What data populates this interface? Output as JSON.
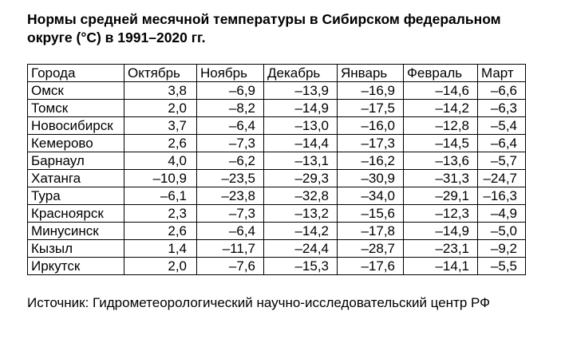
{
  "title": "Нормы средней месячной температуры в Сибирском федеральном округе (°C) в 1991–2020 гг.",
  "table": {
    "headers": [
      "Города",
      "Октябрь",
      "Ноябрь",
      "Декабрь",
      "Январь",
      "Февраль",
      "Март"
    ],
    "rows": [
      [
        "Омск",
        "3,8",
        "–6,9",
        "–13,9",
        "–16,9",
        "–14,6",
        "–6,6"
      ],
      [
        "Томск",
        "2,0",
        "–8,2",
        "–14,9",
        "–17,5",
        "–14,2",
        "–6,3"
      ],
      [
        "Новосибирск",
        "3,7",
        "–6,4",
        "–13,0",
        "–16,0",
        "–12,8",
        "–5,4"
      ],
      [
        "Кемерово",
        "2,6",
        "–7,3",
        "–14,4",
        "–17,3",
        "–14,5",
        "–6,4"
      ],
      [
        "Барнаул",
        "4,0",
        "–6,2",
        "–13,1",
        "–16,2",
        "–13,6",
        "–5,7"
      ],
      [
        "Хатанга",
        "–10,9",
        "–23,5",
        "–29,3",
        "–30,9",
        "–31,3",
        "–24,7"
      ],
      [
        "Тура",
        "–6,1",
        "–23,8",
        "–32,8",
        "–34,0",
        "–29,1",
        "–16,3"
      ],
      [
        "Красноярск",
        "2,3",
        "–7,3",
        "–13,2",
        "–15,6",
        "–12,3",
        "–4,9"
      ],
      [
        "Минусинск",
        "2,6",
        "–6,4",
        "–14,2",
        "–17,8",
        "–14,9",
        "–5,0"
      ],
      [
        "Кызыл",
        "1,4",
        "–11,7",
        "–24,4",
        "–28,7",
        "–23,1",
        "–9,2"
      ],
      [
        "Иркутск",
        "2,0",
        "–7,6",
        "–15,3",
        "–17,6",
        "–14,1",
        "–5,5"
      ]
    ]
  },
  "source": "Источник: Гидрометеорологический научно-исследовательский центр РФ"
}
